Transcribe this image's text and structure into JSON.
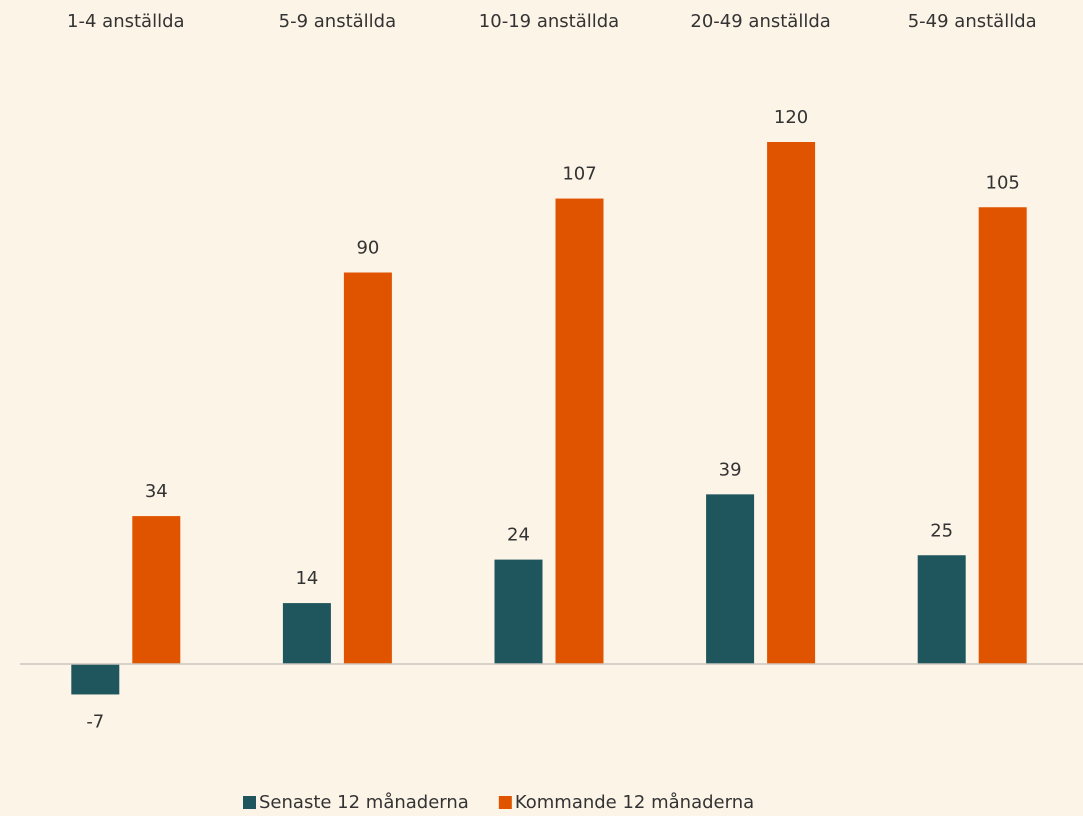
{
  "chart_data": {
    "type": "bar",
    "categories": [
      "1-4 anställda",
      "5-9 anställda",
      "10-19 anställda",
      "20-49 anställda",
      "5-49 anställda"
    ],
    "series": [
      {
        "name": "Senaste 12 månaderna",
        "color": "#1f555c",
        "values": [
          -7,
          14,
          24,
          39,
          25
        ]
      },
      {
        "name": "Kommande 12 månaderna",
        "color": "#e05400",
        "values": [
          34,
          90,
          107,
          120,
          105
        ]
      }
    ],
    "ylim": [
      -10,
      130
    ],
    "legend": "bottom"
  }
}
